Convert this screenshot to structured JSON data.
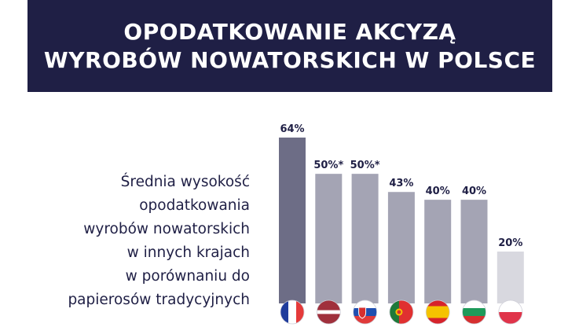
{
  "header": {
    "title_line1": "OPODATKOWANIE AKCYZĄ",
    "title_line2": "WYROBÓW NOWATORSKICH W POLSCE"
  },
  "description": {
    "lines": [
      "Średnia wysokość",
      "opodatkowania",
      "wyrobów nowatorskich",
      "w innych krajach",
      "w porównaniu do",
      "papierosów tradycyjnych"
    ]
  },
  "chart_data": {
    "type": "bar",
    "title": "",
    "xlabel": "",
    "ylabel": "",
    "ylim": [
      0,
      64
    ],
    "grid": false,
    "categories": [
      "France",
      "Latvia",
      "Slovakia",
      "Portugal",
      "Spain",
      "Bulgaria",
      "Poland"
    ],
    "values": [
      64,
      50,
      50,
      43,
      40,
      40,
      20
    ],
    "data_labels": [
      "64%",
      "50%*",
      "50%*",
      "43%",
      "40%",
      "40%",
      "20%"
    ],
    "flags": [
      "flag-france-icon",
      "flag-latvia-icon",
      "flag-slovakia-icon",
      "flag-portugal-icon",
      "flag-spain-icon",
      "flag-bulgaria-icon",
      "flag-poland-icon"
    ],
    "bar_colors": [
      "#6d6d86",
      "#a4a4b4",
      "#a4a4b4",
      "#a4a4b4",
      "#a4a4b4",
      "#a4a4b4",
      "#d8d8df"
    ]
  }
}
